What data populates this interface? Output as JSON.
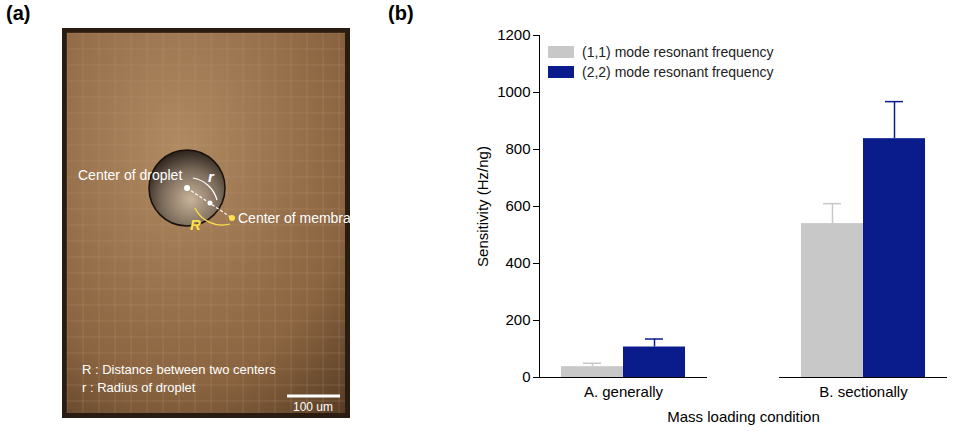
{
  "panel_labels": [
    "(a)",
    "(b)"
  ],
  "panel_a": {
    "type": "image",
    "labels": {
      "droplet_center": "Center of droplet",
      "membrane_center": "Center of membrane",
      "R": "R",
      "r": "r"
    },
    "legend_lines": [
      "R : Distance between two centers",
      "r : Radius of droplet"
    ],
    "scale_bar": "100 um"
  },
  "chart_data": {
    "type": "bar",
    "categories": [
      "A. generally",
      "B. sectionally"
    ],
    "series": [
      {
        "name": "(1,1) mode resonant frequency",
        "color": "#c8c8c8",
        "values": [
          38,
          540
        ],
        "errors": [
          12,
          70
        ]
      },
      {
        "name": "(2,2) mode resonant frequency",
        "color": "#0a1c8c",
        "values": [
          107,
          838
        ],
        "errors": [
          28,
          130
        ]
      }
    ],
    "x_label": "Mass loading condition",
    "y_label": "Sensitivity (Hz/ng)",
    "ylim": [
      0,
      1200
    ],
    "yticks": [
      0,
      200,
      400,
      600,
      800,
      1000,
      1200
    ],
    "legend": "top-left",
    "grid": false
  }
}
